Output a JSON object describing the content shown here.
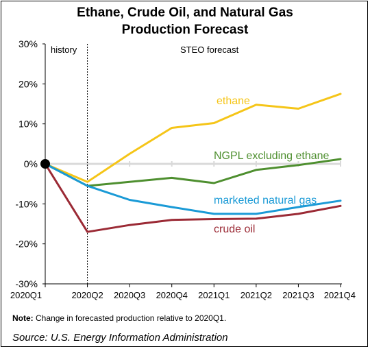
{
  "chart_data": {
    "type": "line",
    "title_line1": "Ethane, Crude Oil, and Natural Gas",
    "title_line2": "Production Forecast",
    "categories": [
      "2020Q1",
      "2020Q2",
      "2020Q3",
      "2020Q4",
      "2021Q1",
      "2021Q2",
      "2021Q3",
      "2021Q4"
    ],
    "y_ticks": [
      "30%",
      "20%",
      "10%",
      "0%",
      "-10%",
      "-20%",
      "-30%"
    ],
    "ylim": [
      -30,
      30
    ],
    "y_unit": "%",
    "region_labels": {
      "history": "history",
      "forecast": "STEO forecast"
    },
    "forecast_divider_at": "2020Q2",
    "series": [
      {
        "name": "ethane",
        "color": "#f5c518",
        "values": [
          0,
          -4.5,
          2.5,
          9,
          10.2,
          14.8,
          13.8,
          17.5
        ]
      },
      {
        "name": "NGPL excluding ethane",
        "color": "#4e8f2f",
        "values": [
          0,
          -5.5,
          -4.5,
          -3.5,
          -4.8,
          -1.5,
          -0.3,
          1.2
        ]
      },
      {
        "name": "marketed natural gas",
        "color": "#1a9ad6",
        "values": [
          0,
          -5.5,
          -9,
          -10.8,
          -12.5,
          -12.5,
          -10.8,
          -9.2
        ]
      },
      {
        "name": "crude oil",
        "color": "#9b2a35",
        "values": [
          0,
          -17,
          -15.3,
          -14,
          -13.8,
          -13.7,
          -12.5,
          -10.5
        ]
      }
    ],
    "origin_marker_color": "#000000",
    "zero_line_color": "#d9d9d9",
    "note_label": "Note:",
    "note_text": " Change in forecasted production relative to 2020Q1.",
    "source": "Source: U.S. Energy Information Administration"
  }
}
